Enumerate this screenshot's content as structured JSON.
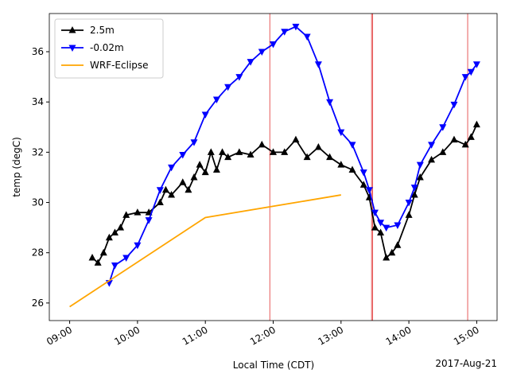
{
  "chart_data": {
    "type": "line",
    "xlabel": "Local Time (CDT)",
    "ylabel": "temp (degC)",
    "x_offset_label": "2017-Aug-21",
    "xlim": [
      "08:42",
      "15:18"
    ],
    "xticks": [
      "09:00",
      "10:00",
      "11:00",
      "12:00",
      "13:00",
      "14:00",
      "15:00"
    ],
    "ylim": [
      25.3,
      37.52
    ],
    "yticks": [
      26,
      28,
      30,
      32,
      34,
      36
    ],
    "legend": "upper left",
    "vlines": {
      "color": "#e03030",
      "x": [
        "11:57",
        "13:27",
        "13:28",
        "14:52"
      ]
    },
    "series": [
      {
        "name": "2.5m",
        "color": "#000000",
        "marker": "^",
        "x": [
          "09:20",
          "09:25",
          "09:30",
          "09:35",
          "09:40",
          "09:45",
          "09:50",
          "10:00",
          "10:10",
          "10:20",
          "10:25",
          "10:30",
          "10:40",
          "10:45",
          "10:50",
          "10:55",
          "11:00",
          "11:05",
          "11:10",
          "11:15",
          "11:20",
          "11:30",
          "11:40",
          "11:50",
          "12:00",
          "12:10",
          "12:20",
          "12:30",
          "12:40",
          "12:50",
          "13:00",
          "13:10",
          "13:20",
          "13:25",
          "13:30",
          "13:35",
          "13:40",
          "13:45",
          "13:50",
          "14:00",
          "14:05",
          "14:10",
          "14:20",
          "14:30",
          "14:40",
          "14:50",
          "14:55",
          "15:00"
        ],
        "values": [
          27.8,
          27.6,
          28.0,
          28.6,
          28.8,
          29.0,
          29.5,
          29.6,
          29.6,
          30.0,
          30.5,
          30.3,
          30.8,
          30.5,
          31.0,
          31.5,
          31.2,
          32.0,
          31.3,
          32.0,
          31.8,
          32.0,
          31.9,
          32.3,
          32.0,
          32.0,
          32.5,
          31.8,
          32.2,
          31.8,
          31.5,
          31.3,
          30.7,
          30.2,
          29.0,
          28.8,
          27.8,
          28.0,
          28.3,
          29.5,
          30.3,
          31.0,
          31.7,
          32.0,
          32.5,
          32.3,
          32.6,
          33.1
        ]
      },
      {
        "name": "-0.02m",
        "color": "#0000ff",
        "marker": "v",
        "x": [
          "09:35",
          "09:40",
          "09:50",
          "10:00",
          "10:10",
          "10:20",
          "10:30",
          "10:40",
          "10:50",
          "11:00",
          "11:10",
          "11:20",
          "11:30",
          "11:40",
          "11:50",
          "12:00",
          "12:10",
          "12:20",
          "12:30",
          "12:40",
          "12:50",
          "13:00",
          "13:10",
          "13:20",
          "13:25",
          "13:30",
          "13:35",
          "13:40",
          "13:50",
          "14:00",
          "14:05",
          "14:10",
          "14:20",
          "14:30",
          "14:40",
          "14:50",
          "14:55",
          "15:00"
        ],
        "values": [
          26.8,
          27.5,
          27.8,
          28.3,
          29.3,
          30.5,
          31.4,
          31.9,
          32.4,
          33.5,
          34.1,
          34.6,
          35.0,
          35.6,
          36.0,
          36.3,
          36.8,
          37.0,
          36.6,
          35.5,
          34.0,
          32.8,
          32.3,
          31.2,
          30.5,
          29.6,
          29.2,
          29.0,
          29.1,
          30.0,
          30.6,
          31.5,
          32.3,
          33.0,
          33.9,
          35.0,
          35.2,
          35.5
        ]
      },
      {
        "name": "WRF-Eclipse",
        "color": "#ffa500",
        "marker": null,
        "x": [
          "09:00",
          "11:00",
          "13:00"
        ],
        "values": [
          25.85,
          29.4,
          30.3
        ]
      }
    ]
  }
}
